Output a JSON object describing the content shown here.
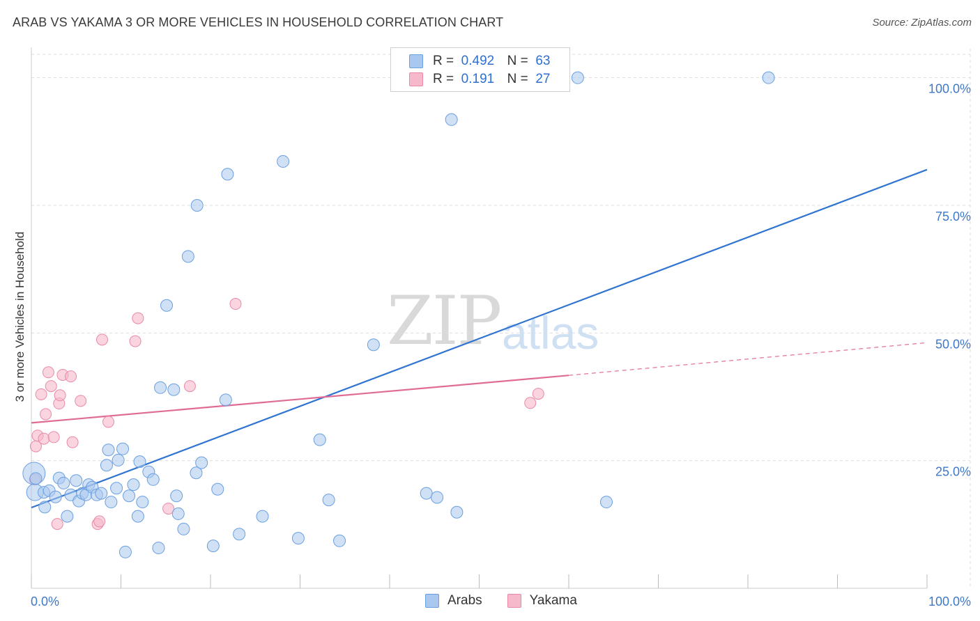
{
  "header": {
    "title": "ARAB VS YAKAMA 3 OR MORE VEHICLES IN HOUSEHOLD CORRELATION CHART",
    "source": "Source: ZipAtlas.com"
  },
  "watermark": {
    "zip": "ZIP",
    "atlas": "atlas"
  },
  "legend": {
    "rows": [
      {
        "r_label": "R =",
        "r_value": "0.492",
        "n_label": "N =",
        "n_value": "63",
        "color": "#a9c8ef"
      },
      {
        "r_label": "R =",
        "r_value": "0.191",
        "n_label": "N =",
        "n_value": "27",
        "color": "#f6b9cb"
      }
    ]
  },
  "bottom_legend": [
    "Arabs",
    "Yakama"
  ],
  "colors": {
    "arabs_fill": "#a9c8ef",
    "arabs_stroke": "#6a9fe0",
    "arabs_line": "#2f74d0",
    "yakama_fill": "#f6b9cb",
    "yakama_stroke": "#e88aa6",
    "yakama_line": "#e06b94",
    "grid": "#dcdcdc",
    "tick_text": "#3f78c8"
  },
  "chart_data": {
    "type": "scatter",
    "title": "ARAB VS YAKAMA 3 OR MORE VEHICLES IN HOUSEHOLD CORRELATION CHART",
    "xlabel": "",
    "ylabel": "3 or more Vehicles in Household",
    "xlim": [
      0,
      100
    ],
    "ylim": [
      0,
      105
    ],
    "x_tick_labels": [
      "0.0%",
      "100.0%"
    ],
    "y_ticks": [
      25,
      50,
      75,
      100
    ],
    "y_tick_labels": [
      "25.0%",
      "50.0%",
      "75.0%",
      "100.0%"
    ],
    "grid": true,
    "legend_position": "top-center",
    "series": [
      {
        "name": "Arabs",
        "points": [
          [
            0.3,
            22.5
          ],
          [
            0.4,
            18.8
          ],
          [
            1.4,
            18.8
          ],
          [
            1.5,
            15.9
          ],
          [
            2.0,
            19.1
          ],
          [
            2.7,
            17.9
          ],
          [
            3.1,
            21.6
          ],
          [
            3.6,
            20.6
          ],
          [
            4.0,
            14.1
          ],
          [
            4.4,
            18.3
          ],
          [
            5.0,
            21.1
          ],
          [
            5.3,
            17.1
          ],
          [
            5.7,
            18.6
          ],
          [
            6.1,
            18.3
          ],
          [
            6.4,
            20.3
          ],
          [
            6.8,
            19.8
          ],
          [
            7.3,
            18.3
          ],
          [
            7.8,
            18.6
          ],
          [
            8.4,
            24.1
          ],
          [
            8.6,
            27.1
          ],
          [
            8.9,
            16.9
          ],
          [
            9.5,
            19.6
          ],
          [
            9.7,
            25.1
          ],
          [
            10.2,
            27.3
          ],
          [
            10.5,
            7.1
          ],
          [
            10.9,
            18.1
          ],
          [
            11.4,
            20.3
          ],
          [
            11.9,
            14.1
          ],
          [
            12.1,
            24.8
          ],
          [
            12.4,
            16.9
          ],
          [
            13.1,
            22.8
          ],
          [
            13.6,
            21.3
          ],
          [
            14.2,
            7.9
          ],
          [
            14.4,
            39.3
          ],
          [
            15.1,
            55.4
          ],
          [
            15.9,
            38.9
          ],
          [
            16.2,
            18.1
          ],
          [
            16.4,
            14.6
          ],
          [
            17.0,
            11.6
          ],
          [
            17.5,
            65.0
          ],
          [
            18.4,
            22.6
          ],
          [
            18.5,
            75.0
          ],
          [
            19.0,
            24.6
          ],
          [
            20.3,
            8.3
          ],
          [
            20.8,
            19.4
          ],
          [
            21.7,
            36.9
          ],
          [
            21.9,
            81.1
          ],
          [
            23.2,
            10.6
          ],
          [
            25.8,
            14.1
          ],
          [
            28.1,
            83.6
          ],
          [
            29.8,
            9.8
          ],
          [
            32.2,
            29.1
          ],
          [
            33.2,
            17.3
          ],
          [
            34.4,
            9.3
          ],
          [
            38.2,
            47.7
          ],
          [
            44.1,
            18.6
          ],
          [
            45.3,
            17.8
          ],
          [
            46.9,
            91.8
          ],
          [
            47.5,
            14.9
          ],
          [
            61.0,
            100.0
          ],
          [
            64.2,
            16.9
          ],
          [
            82.3,
            100.0
          ],
          [
            0.5,
            21.5
          ]
        ],
        "trend": {
          "x": [
            0,
            100
          ],
          "y": [
            15.8,
            82.0
          ]
        }
      },
      {
        "name": "Yakama",
        "points": [
          [
            0.4,
            21.3
          ],
          [
            0.5,
            27.8
          ],
          [
            0.7,
            29.9
          ],
          [
            1.1,
            38.0
          ],
          [
            1.4,
            29.3
          ],
          [
            1.6,
            34.1
          ],
          [
            1.9,
            42.3
          ],
          [
            2.2,
            39.6
          ],
          [
            2.5,
            29.6
          ],
          [
            2.9,
            12.6
          ],
          [
            3.1,
            36.2
          ],
          [
            3.2,
            37.8
          ],
          [
            3.5,
            41.8
          ],
          [
            4.4,
            41.5
          ],
          [
            4.6,
            28.6
          ],
          [
            5.5,
            36.7
          ],
          [
            7.4,
            12.6
          ],
          [
            7.6,
            13.1
          ],
          [
            7.9,
            48.7
          ],
          [
            8.6,
            32.6
          ],
          [
            11.6,
            48.4
          ],
          [
            11.9,
            52.9
          ],
          [
            15.3,
            15.6
          ],
          [
            17.7,
            39.6
          ],
          [
            22.8,
            55.7
          ],
          [
            55.7,
            36.3
          ],
          [
            56.6,
            38.1
          ]
        ],
        "trend_solid": {
          "x": [
            0,
            60
          ],
          "y": [
            32.4,
            41.7
          ]
        },
        "trend_dashed": {
          "x": [
            60,
            100
          ],
          "y": [
            41.7,
            48.1
          ]
        }
      }
    ]
  }
}
